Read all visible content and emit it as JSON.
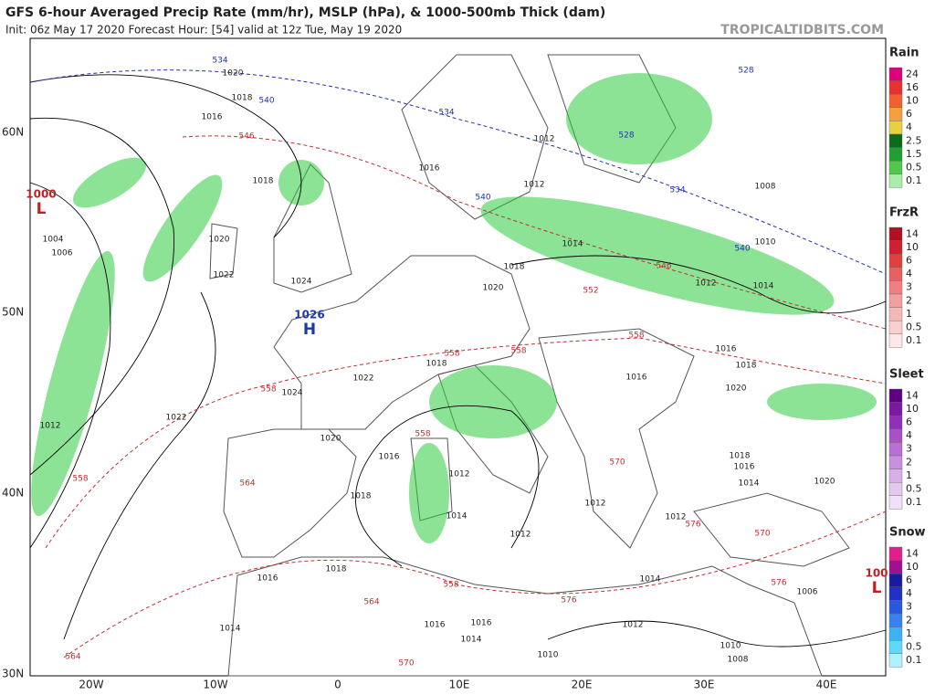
{
  "header": {
    "title": "GFS 6-hour Averaged Precip Rate (mm/hr), MSLP (hPa), & 1000-500mb Thick (dam)",
    "init": "Init: 06z May 17 2020   Forecast Hour: [54]   valid at 12z Tue, May 19 2020",
    "watermark": "TROPICALTIDBITS.COM"
  },
  "axes": {
    "lat_labels": [
      "60N",
      "50N",
      "40N",
      "30N"
    ],
    "lon_labels": [
      "20W",
      "10W",
      "0",
      "10E",
      "20E",
      "30E",
      "40E"
    ]
  },
  "centers": [
    {
      "value": "1026",
      "symbol": "H",
      "color": "#1a3aa8"
    },
    {
      "value": "1000",
      "symbol": "L",
      "color": "#c02020"
    },
    {
      "value": "100",
      "symbol": "L",
      "color": "#c02020"
    }
  ],
  "isobar_labels": [
    "1020",
    "1018",
    "1016",
    "1018",
    "1020",
    "1004",
    "1006",
    "1022",
    "1024",
    "1012",
    "1016",
    "1012",
    "1014",
    "1018",
    "1020",
    "1008",
    "1010",
    "1012",
    "1014",
    "1016",
    "1018",
    "1020",
    "1016",
    "1018",
    "1022",
    "1024",
    "1022",
    "1012",
    "1020",
    "1016",
    "1012",
    "1018",
    "1014",
    "1012",
    "1012",
    "1012",
    "1018",
    "1016",
    "1014",
    "1020",
    "1016",
    "1018",
    "1014",
    "1006",
    "1016",
    "1016",
    "1014",
    "1012",
    "1014",
    "1010",
    "1010",
    "1008"
  ],
  "thickness_labels": [
    "534",
    "540",
    "534",
    "528",
    "534",
    "540",
    "540",
    "528",
    "546",
    "546",
    "552",
    "558",
    "558",
    "558",
    "558",
    "558",
    "558",
    "564",
    "570",
    "576",
    "570",
    "576",
    "558",
    "564",
    "576",
    "570",
    "564"
  ],
  "thickness_colors": {
    "cold": "#2233aa",
    "warm": "#c03030"
  },
  "legends": [
    {
      "title": "Rain",
      "labels": [
        "24",
        "16",
        "10",
        "6",
        "4",
        "2.5",
        "1.5",
        "0.5",
        "0.1"
      ],
      "colors": [
        "#e0007a",
        "#e83030",
        "#f06030",
        "#f4a040",
        "#e8d040",
        "#0b6b1a",
        "#20a030",
        "#50c850",
        "#a8eea8"
      ]
    },
    {
      "title": "FrzR",
      "labels": [
        "14",
        "10",
        "6",
        "4",
        "3",
        "2",
        "1",
        "0.5",
        "0.1"
      ],
      "colors": [
        "#b01020",
        "#d02030",
        "#e04040",
        "#e86060",
        "#ee8080",
        "#f0a0a0",
        "#f4b8b8",
        "#f8d0d0",
        "#fce8e8"
      ]
    },
    {
      "title": "Sleet",
      "labels": [
        "14",
        "10",
        "6",
        "4",
        "3",
        "2",
        "1",
        "0.5",
        "0.1"
      ],
      "colors": [
        "#600080",
        "#7a1aa0",
        "#9030b8",
        "#a850c8",
        "#b870d4",
        "#c890de",
        "#d8b0e8",
        "#e4c8f0",
        "#f0e0f8"
      ]
    },
    {
      "title": "Snow",
      "labels": [
        "14",
        "10",
        "6",
        "4",
        "3",
        "2",
        "1",
        "0.5",
        "0.1"
      ],
      "colors": [
        "#e0208a",
        "#a01090",
        "#1a1aa0",
        "#2030c8",
        "#2858e0",
        "#3a80f0",
        "#40b0f4",
        "#60d8f8",
        "#b0f0ff"
      ]
    }
  ]
}
